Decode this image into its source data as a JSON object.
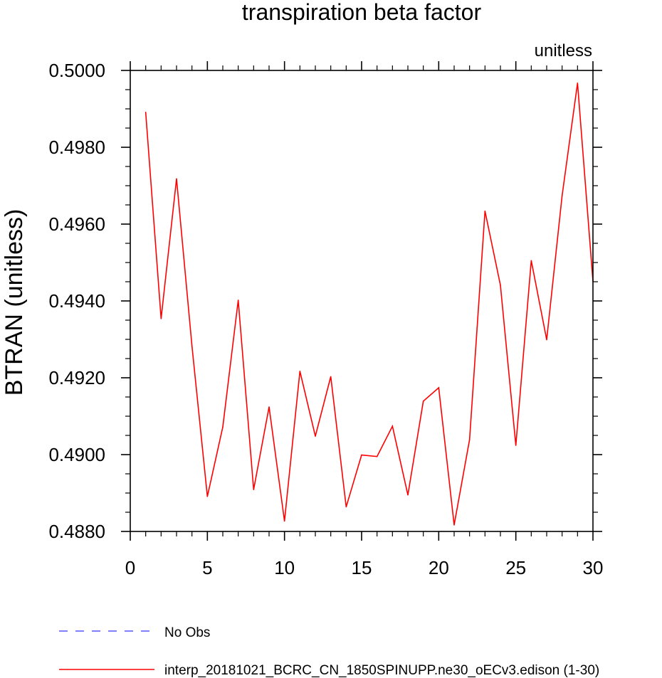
{
  "chart_data": {
    "type": "line",
    "title": "transpiration beta factor",
    "units_label": "unitless",
    "ylabel": "BTRAN  (unitless)",
    "xlabel": "",
    "xlim": [
      0,
      30
    ],
    "ylim": [
      0.488,
      0.5
    ],
    "x_ticks": [
      0,
      5,
      10,
      15,
      20,
      25,
      30
    ],
    "x_tick_labels": [
      "0",
      "5",
      "10",
      "15",
      "20",
      "25",
      "30"
    ],
    "y_ticks": [
      0.488,
      0.49,
      0.492,
      0.494,
      0.496,
      0.498,
      0.5
    ],
    "y_tick_labels": [
      "0.4880",
      "0.4900",
      "0.4920",
      "0.4940",
      "0.4960",
      "0.4980",
      "0.5000"
    ],
    "grid": false,
    "legend_position": "bottom-left",
    "series": [
      {
        "name": "No Obs",
        "color": "#3333ff",
        "dash": true,
        "x": [],
        "y": []
      },
      {
        "name": "interp_20181021_BCRC_CN_1850SPINUPP.ne30_oECv3.edison (1-30)",
        "color": "#ff0000",
        "dash": false,
        "x": [
          1,
          2,
          3,
          4,
          5,
          6,
          7,
          8,
          9,
          10,
          11,
          12,
          13,
          14,
          15,
          16,
          17,
          18,
          19,
          20,
          21,
          22,
          23,
          24,
          25,
          26,
          27,
          28,
          29,
          30
        ],
        "y": [
          0.49891,
          0.49354,
          0.49718,
          0.49283,
          0.48891,
          0.49072,
          0.49402,
          0.48909,
          0.49124,
          0.48827,
          0.49217,
          0.49048,
          0.49203,
          0.48864,
          0.48999,
          0.48995,
          0.49074,
          0.48895,
          0.49139,
          0.49174,
          0.48817,
          0.49039,
          0.49634,
          0.49441,
          0.49024,
          0.49505,
          0.49299,
          0.49674,
          0.49967,
          0.49451
        ]
      }
    ]
  }
}
